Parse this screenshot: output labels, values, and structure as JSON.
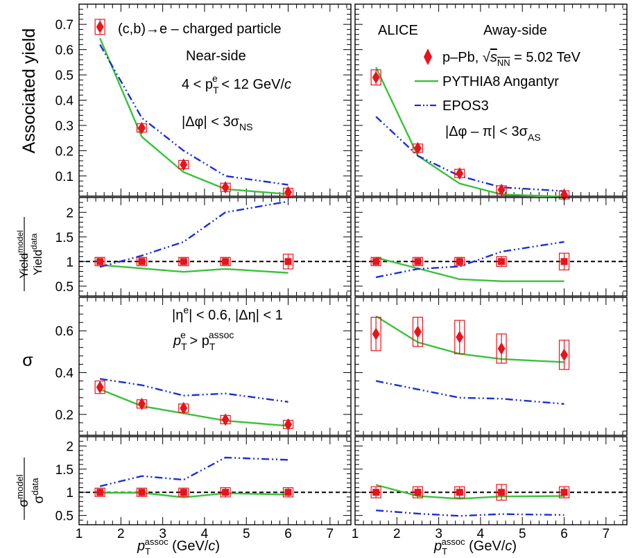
{
  "colors": {
    "data": "#e8131b",
    "pythia": "#39c239",
    "epos": "#1a2ed6",
    "unity_line": "#000000"
  },
  "annotations": {
    "tl_1": "(c,b)→e – charged particle",
    "tl_2": "Near-side",
    "tl_3_pre": "4 < p",
    "tl_3_sub": "T",
    "tl_3_sup": "e",
    "tl_3_post": " < 12 GeV/",
    "tl_3_c": "c",
    "tl_4_pre": "|Δφ| < 3σ",
    "tl_4_sub": "NS",
    "tr_alice": "ALICE",
    "tr_side": "Away-side",
    "tr_cut_pre": "|Δφ – π| < 3σ",
    "tr_cut_sub": "AS",
    "sig_1": "|η",
    "sig_1_sup": "e",
    "sig_1_post": "| < 0.6, |Δη| < 1",
    "sig_2_p": "p",
    "sig_2_sub": "T",
    "sig_2_sup": "e",
    "sig_2_gt": " > p",
    "sig_2_sub2": "T",
    "sig_2_sup2": "assoc"
  },
  "legend": {
    "data_pre": "p–Pb, ",
    "data_sqrt": "s",
    "data_sub": "NN",
    "data_post": " = 5.02 TeV",
    "pythia": "PYTHIA8 Angantyr",
    "epos": "EPOS3"
  },
  "axes": {
    "ylabel_yield": "Associated yield",
    "ylabel_sigma": "σ",
    "ratio_yield_num": "Yield",
    "ratio_yield_num_sup": "model",
    "ratio_yield_den": "Yield",
    "ratio_yield_den_sup": "data",
    "ratio_sigma_num": "σ",
    "ratio_sigma_num_sup": "model",
    "ratio_sigma_den": "σ",
    "ratio_sigma_den_sup": "data",
    "xlabel_p": "p",
    "xlabel_sub": "T",
    "xlabel_sup": "assoc",
    "xlabel_unit": " (GeV/",
    "xlabel_c": "c",
    "xlabel_close": ")"
  },
  "chart_data": [
    {
      "type": "scatter",
      "panel": "near-side yield",
      "x": [
        1.5,
        2.5,
        3.5,
        4.5,
        6.0
      ],
      "xlim": [
        1,
        7.5
      ],
      "ylim": [
        0.02,
        0.78
      ],
      "yticks": [
        "0.1",
        "0.2",
        "0.3",
        "0.4",
        "0.5",
        "0.6",
        "0.7"
      ],
      "series": [
        {
          "name": "p–Pb, √sNN = 5.02 TeV",
          "values": [
            0.69,
            0.29,
            0.145,
            0.055,
            0.035
          ],
          "errors": [
            0.03,
            0.012,
            0.007,
            0.004,
            0.005
          ]
        },
        {
          "name": "PYTHIA8 Angantyr",
          "values": [
            0.645,
            0.255,
            0.115,
            0.048,
            0.028
          ]
        },
        {
          "name": "EPOS3",
          "values": [
            0.62,
            0.33,
            0.2,
            0.1,
            0.065
          ]
        }
      ]
    },
    {
      "type": "scatter",
      "panel": "away-side yield",
      "x": [
        1.5,
        2.5,
        3.5,
        4.5,
        6.0
      ],
      "xlim": [
        1,
        7.5
      ],
      "ylim": [
        0.02,
        0.78
      ],
      "series": [
        {
          "name": "p–Pb, √sNN = 5.02 TeV",
          "values": [
            0.49,
            0.21,
            0.11,
            0.045,
            0.025
          ],
          "errors": [
            0.03,
            0.012,
            0.008,
            0.004,
            0.004
          ]
        },
        {
          "name": "PYTHIA8 Angantyr",
          "values": [
            0.53,
            0.18,
            0.07,
            0.027,
            0.018
          ]
        },
        {
          "name": "EPOS3",
          "values": [
            0.335,
            0.18,
            0.1,
            0.055,
            0.04
          ]
        }
      ]
    },
    {
      "type": "scatter",
      "panel": "near-side yield ratio",
      "x": [
        1.5,
        2.5,
        3.5,
        4.5,
        6.0
      ],
      "xlim": [
        1,
        7.5
      ],
      "ylim": [
        0.3,
        2.3
      ],
      "yticks": [
        "0.5",
        "1",
        "1.5",
        "2"
      ],
      "series": [
        {
          "name": "data",
          "values": [
            1,
            1,
            1,
            1,
            1
          ],
          "errors": [
            0.05,
            0.05,
            0.05,
            0.07,
            0.15
          ]
        },
        {
          "name": "PYTHIA8 Angantyr",
          "values": [
            0.93,
            0.86,
            0.79,
            0.85,
            0.77
          ]
        },
        {
          "name": "EPOS3",
          "values": [
            0.89,
            1.12,
            1.4,
            2.0,
            2.22
          ]
        }
      ]
    },
    {
      "type": "scatter",
      "panel": "away-side yield ratio",
      "x": [
        1.5,
        2.5,
        3.5,
        4.5,
        6.0
      ],
      "xlim": [
        1,
        7.5
      ],
      "ylim": [
        0.3,
        2.3
      ],
      "series": [
        {
          "name": "data",
          "values": [
            1,
            1,
            1,
            1,
            1
          ],
          "errors": [
            0.07,
            0.07,
            0.08,
            0.1,
            0.17
          ]
        },
        {
          "name": "PYTHIA8 Angantyr",
          "values": [
            1.08,
            0.86,
            0.64,
            0.6,
            0.6
          ]
        },
        {
          "name": "EPOS3",
          "values": [
            0.68,
            0.85,
            0.9,
            1.2,
            1.4
          ]
        }
      ]
    },
    {
      "type": "scatter",
      "panel": "near-side width",
      "x": [
        1.5,
        2.5,
        3.5,
        4.5,
        6.0
      ],
      "xlim": [
        1,
        7.5
      ],
      "ylim": [
        0.1,
        0.76
      ],
      "yticks": [
        "0.2",
        "0.4",
        "0.6"
      ],
      "series": [
        {
          "name": "p–Pb, √sNN = 5.02 TeV",
          "values": [
            0.33,
            0.25,
            0.23,
            0.175,
            0.152
          ],
          "errors": [
            0.03,
            0.02,
            0.02,
            0.02,
            0.015
          ]
        },
        {
          "name": "PYTHIA8 Angantyr",
          "values": [
            0.32,
            0.24,
            0.205,
            0.17,
            0.145
          ]
        },
        {
          "name": "EPOS3",
          "values": [
            0.37,
            0.34,
            0.29,
            0.3,
            0.26
          ]
        }
      ]
    },
    {
      "type": "scatter",
      "panel": "away-side width",
      "x": [
        1.5,
        2.5,
        3.5,
        4.5,
        6.0
      ],
      "xlim": [
        1,
        7.5
      ],
      "ylim": [
        0.1,
        0.76
      ],
      "series": [
        {
          "name": "p–Pb, √sNN = 5.02 TeV",
          "values": [
            0.585,
            0.595,
            0.57,
            0.515,
            0.485
          ],
          "errors": [
            0.08,
            0.07,
            0.08,
            0.07,
            0.07
          ]
        },
        {
          "name": "PYTHIA8 Angantyr",
          "values": [
            0.67,
            0.545,
            0.49,
            0.465,
            0.45
          ]
        },
        {
          "name": "EPOS3",
          "values": [
            0.36,
            0.32,
            0.28,
            0.275,
            0.25
          ]
        }
      ]
    },
    {
      "type": "scatter",
      "panel": "near-side width ratio",
      "x": [
        1.5,
        2.5,
        3.5,
        4.5,
        6.0
      ],
      "xlim": [
        1,
        7.5
      ],
      "ylim": [
        0.3,
        2.2
      ],
      "yticks": [
        "0.5",
        "1",
        "1.5",
        "2"
      ],
      "series": [
        {
          "name": "data",
          "values": [
            1,
            1,
            1,
            1,
            1
          ],
          "errors": [
            0.08,
            0.08,
            0.08,
            0.1,
            0.1
          ]
        },
        {
          "name": "PYTHIA8 Angantyr",
          "values": [
            0.99,
            0.99,
            0.89,
            0.98,
            0.95
          ]
        },
        {
          "name": "EPOS3",
          "values": [
            1.13,
            1.35,
            1.27,
            1.75,
            1.7
          ]
        }
      ]
    },
    {
      "type": "scatter",
      "panel": "away-side width ratio",
      "x": [
        1.5,
        2.5,
        3.5,
        4.5,
        6.0
      ],
      "xlim": [
        1,
        7.5
      ],
      "ylim": [
        0.3,
        2.2
      ],
      "series": [
        {
          "name": "data",
          "values": [
            1,
            1,
            1,
            1,
            1
          ],
          "errors": [
            0.12,
            0.12,
            0.12,
            0.17,
            0.12
          ]
        },
        {
          "name": "PYTHIA8 Angantyr",
          "values": [
            1.16,
            0.92,
            0.86,
            0.91,
            0.92
          ]
        },
        {
          "name": "EPOS3",
          "values": [
            0.61,
            0.54,
            0.49,
            0.53,
            0.51
          ]
        }
      ]
    }
  ],
  "xticks": [
    "1",
    "2",
    "3",
    "4",
    "5",
    "6",
    "7"
  ]
}
